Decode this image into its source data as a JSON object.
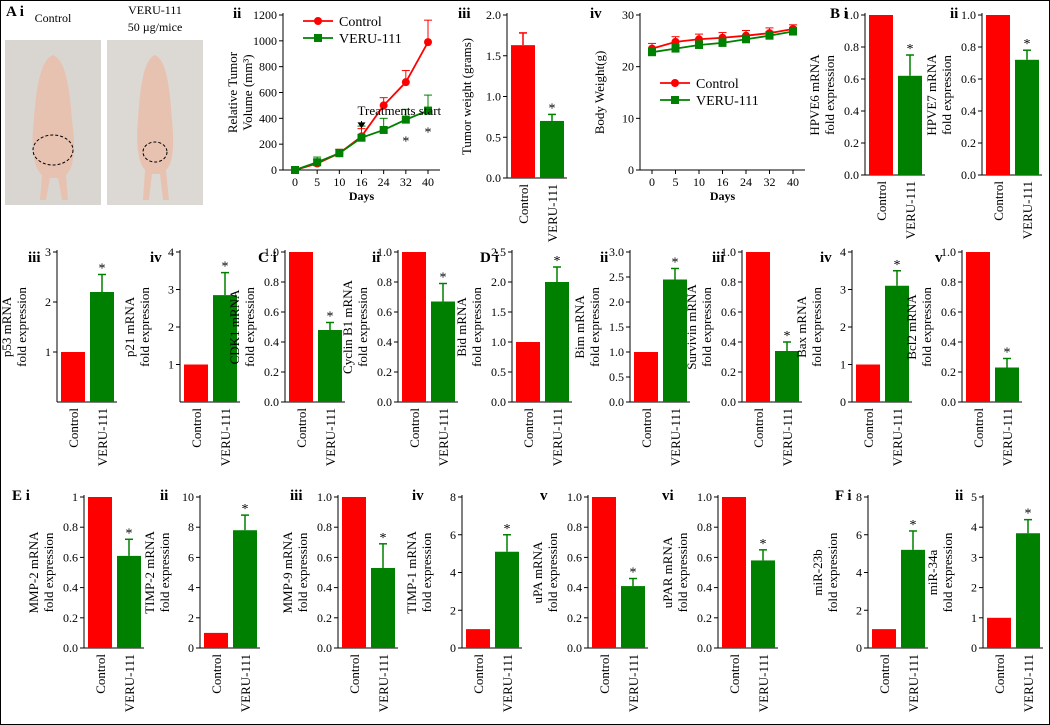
{
  "chart_data": [
    {
      "type": "image",
      "panel": "A i",
      "labels": [
        "Control",
        "VERU-111",
        "50 µg/mice"
      ]
    },
    {
      "type": "line",
      "panel": "ii",
      "ylabel": [
        "Relative Tumor",
        "Volume (mm³)"
      ],
      "xlabel": "Days",
      "categories": [
        "0",
        "5",
        "10",
        "16",
        "24",
        "32",
        "40"
      ],
      "ylim": [
        0,
        1200
      ],
      "yticks": [
        0,
        200,
        400,
        600,
        800,
        1000,
        1200
      ],
      "series": [
        {
          "name": "Control",
          "color": "#ff0000",
          "marker": "circle",
          "values": [
            0,
            50,
            130,
            260,
            500,
            680,
            990
          ],
          "errors": [
            10,
            30,
            30,
            60,
            60,
            90,
            170
          ]
        },
        {
          "name": "VERU-111",
          "color": "#008000",
          "marker": "square",
          "values": [
            0,
            60,
            130,
            250,
            310,
            390,
            460
          ],
          "errors": [
            10,
            40,
            30,
            90,
            90,
            80,
            120
          ]
        }
      ],
      "legend": "upper left",
      "annotations": [
        {
          "text": "Treatments start",
          "index": 3
        },
        {
          "text": "*",
          "index": 5,
          "series": 1
        },
        {
          "text": "*",
          "index": 6,
          "series": 1
        }
      ]
    },
    {
      "type": "bar",
      "panel": "iii",
      "ylabel": [
        "Tumor weight (grams)"
      ],
      "categories": [
        "Control",
        "VERU-111"
      ],
      "colors": [
        "#ff0000",
        "#008000"
      ],
      "values": [
        1.63,
        0.7
      ],
      "errors": [
        0.15,
        0.08
      ],
      "ylim": [
        0,
        2
      ],
      "yticks": [
        {
          "value": 0,
          "label": "0.0"
        },
        0.5,
        {
          "value": 1,
          "label": "1.0"
        },
        1.5,
        {
          "value": 2,
          "label": "2.0"
        }
      ],
      "annotations": [
        {
          "text": "*",
          "index": 1
        }
      ]
    },
    {
      "type": "line",
      "panel": "iv",
      "ylabel": [
        "Body Weight(g)"
      ],
      "xlabel": "Days",
      "categories": [
        "0",
        "5",
        "10",
        "16",
        "24",
        "32",
        "40"
      ],
      "ylim": [
        0,
        30
      ],
      "yticks": [
        0,
        10,
        20,
        30
      ],
      "series": [
        {
          "name": "Control",
          "color": "#ff0000",
          "marker": "circle",
          "values": [
            23.5,
            24.8,
            25.3,
            25.6,
            26,
            26.5,
            27.3
          ],
          "errors": [
            1,
            1,
            1,
            1,
            1,
            1,
            0.8
          ]
        },
        {
          "name": "VERU-111",
          "color": "#008000",
          "marker": "square",
          "values": [
            22.8,
            23.5,
            24.2,
            24.6,
            25.3,
            26,
            26.8
          ],
          "errors": [
            0.8,
            0.8,
            0.8,
            0.8,
            0.8,
            0.8,
            0.8
          ]
        }
      ],
      "legend": "center left",
      "annotations": []
    },
    {
      "type": "bar",
      "panel": "B i",
      "ylabel": [
        "HPVE6 mRNA",
        "fold expression"
      ],
      "categories": [
        "Control",
        "VERU-111"
      ],
      "colors": [
        "#ff0000",
        "#008000"
      ],
      "values": [
        1,
        0.62
      ],
      "errors": [
        0,
        0.13
      ],
      "ylim": [
        0,
        1
      ],
      "yticks": [
        {
          "value": 0,
          "label": "0.0"
        },
        0.2,
        0.4,
        0.6,
        0.8,
        {
          "value": 1,
          "label": "1.0"
        }
      ],
      "annotations": [
        {
          "text": "*",
          "index": 1
        }
      ]
    },
    {
      "type": "bar",
      "panel": "ii",
      "ylabel": [
        "HPVE7 mRNA",
        "fold expression"
      ],
      "categories": [
        "Control",
        "VERU-111"
      ],
      "colors": [
        "#ff0000",
        "#008000"
      ],
      "values": [
        1,
        0.72
      ],
      "errors": [
        0,
        0.06
      ],
      "ylim": [
        0,
        1
      ],
      "yticks": [
        {
          "value": 0,
          "label": "0.0"
        },
        0.2,
        0.4,
        0.6,
        0.8,
        {
          "value": 1,
          "label": "1.0"
        }
      ],
      "annotations": [
        {
          "text": "*",
          "index": 1
        }
      ]
    },
    {
      "type": "bar",
      "panel": "iii",
      "ylabel": [
        "p53 mRNA",
        "fold expression"
      ],
      "categories": [
        "Control",
        "VERU-111"
      ],
      "colors": [
        "#ff0000",
        "#008000"
      ],
      "values": [
        1,
        2.2
      ],
      "errors": [
        0,
        0.35
      ],
      "ylim": [
        0,
        3
      ],
      "yticks": [
        1,
        2,
        3
      ],
      "annotations": [
        {
          "text": "*",
          "index": 1
        }
      ]
    },
    {
      "type": "bar",
      "panel": "iv",
      "ylabel": [
        "p21 mRNA",
        "fold expression"
      ],
      "categories": [
        "Control",
        "VERU-111"
      ],
      "colors": [
        "#ff0000",
        "#008000"
      ],
      "values": [
        1,
        2.85
      ],
      "errors": [
        0,
        0.6
      ],
      "ylim": [
        0,
        4
      ],
      "yticks": [
        1,
        2,
        3,
        4
      ],
      "annotations": [
        {
          "text": "*",
          "index": 1
        }
      ]
    },
    {
      "type": "bar",
      "panel": "C i",
      "ylabel": [
        "CDK1 mRNA",
        "fold expression"
      ],
      "categories": [
        "Control",
        "VERU-111"
      ],
      "colors": [
        "#ff0000",
        "#008000"
      ],
      "values": [
        1,
        0.48
      ],
      "errors": [
        0,
        0.05
      ],
      "ylim": [
        0,
        1
      ],
      "yticks": [
        {
          "value": 0,
          "label": "0.0"
        },
        0.2,
        0.4,
        0.6,
        0.8,
        {
          "value": 1,
          "label": "1.0"
        }
      ],
      "annotations": [
        {
          "text": "*",
          "index": 1
        }
      ]
    },
    {
      "type": "bar",
      "panel": "ii",
      "ylabel": [
        "Cyclin B1 mRNA",
        "fold expression"
      ],
      "categories": [
        "Control",
        "VERU-111"
      ],
      "colors": [
        "#ff0000",
        "#008000"
      ],
      "values": [
        1,
        0.67
      ],
      "errors": [
        0,
        0.12
      ],
      "ylim": [
        0,
        1
      ],
      "yticks": [
        {
          "value": 0,
          "label": "0.0"
        },
        0.2,
        0.4,
        0.6,
        0.8,
        {
          "value": 1,
          "label": "1.0"
        }
      ],
      "annotations": [
        {
          "text": "*",
          "index": 1
        }
      ]
    },
    {
      "type": "bar",
      "panel": "D i",
      "ylabel": [
        "Bid mRNA",
        "fold expression"
      ],
      "categories": [
        "Control",
        "VERU-111"
      ],
      "colors": [
        "#ff0000",
        "#008000"
      ],
      "values": [
        1,
        2.0
      ],
      "errors": [
        0,
        0.25
      ],
      "ylim": [
        0,
        2.5
      ],
      "yticks": [
        {
          "value": 0,
          "label": "0.0"
        },
        0.5,
        {
          "value": 1,
          "label": "1.0"
        },
        1.5,
        {
          "value": 2,
          "label": "2.0"
        },
        2.5
      ],
      "annotations": [
        {
          "text": "*",
          "index": 1
        }
      ]
    },
    {
      "type": "bar",
      "panel": "ii",
      "ylabel": [
        "Bim mRNA",
        "fold expression"
      ],
      "categories": [
        "Control",
        "VERU-111"
      ],
      "colors": [
        "#ff0000",
        "#008000"
      ],
      "values": [
        1,
        2.45
      ],
      "errors": [
        0,
        0.22
      ],
      "ylim": [
        0,
        3
      ],
      "yticks": [
        {
          "value": 0,
          "label": "0.0"
        },
        0.5,
        {
          "value": 1,
          "label": "1.0"
        },
        1.5,
        {
          "value": 2,
          "label": "2.0"
        },
        2.5,
        {
          "value": 3,
          "label": "3.0"
        }
      ],
      "annotations": [
        {
          "text": "*",
          "index": 1
        }
      ]
    },
    {
      "type": "bar",
      "panel": "iii",
      "ylabel": [
        "Survivin mRNA",
        "fold expression"
      ],
      "categories": [
        "Control",
        "VERU-111"
      ],
      "colors": [
        "#ff0000",
        "#008000"
      ],
      "values": [
        1,
        0.34
      ],
      "errors": [
        0,
        0.06
      ],
      "ylim": [
        0,
        1
      ],
      "yticks": [
        {
          "value": 0,
          "label": "0.0"
        },
        0.2,
        0.4,
        0.6,
        0.8,
        {
          "value": 1,
          "label": "1.0"
        }
      ],
      "annotations": [
        {
          "text": "*",
          "index": 1
        }
      ]
    },
    {
      "type": "bar",
      "panel": "iv",
      "ylabel": [
        "Bax mRNA",
        "fold expression"
      ],
      "categories": [
        "Control",
        "VERU-111"
      ],
      "colors": [
        "#ff0000",
        "#008000"
      ],
      "values": [
        1,
        3.1
      ],
      "errors": [
        0,
        0.4
      ],
      "ylim": [
        0,
        4
      ],
      "yticks": [
        0,
        1,
        2,
        3,
        4
      ],
      "annotations": [
        {
          "text": "*",
          "index": 1
        }
      ]
    },
    {
      "type": "bar",
      "panel": "v",
      "ylabel": [
        "Bcl2 mRNA",
        "fold expression"
      ],
      "categories": [
        "Control",
        "VERU-111"
      ],
      "colors": [
        "#ff0000",
        "#008000"
      ],
      "values": [
        1,
        0.23
      ],
      "errors": [
        0,
        0.06
      ],
      "ylim": [
        0,
        1
      ],
      "yticks": [
        {
          "value": 0,
          "label": "0.0"
        },
        0.2,
        0.4,
        0.6,
        0.8,
        {
          "value": 1,
          "label": "1.0"
        }
      ],
      "annotations": [
        {
          "text": "*",
          "index": 1
        }
      ]
    },
    {
      "type": "bar",
      "panel": "E i",
      "ylabel": [
        "MMP-2 mRNA",
        "fold expression"
      ],
      "categories": [
        "Control",
        "VERU-111"
      ],
      "colors": [
        "#ff0000",
        "#008000"
      ],
      "values": [
        1,
        0.61
      ],
      "errors": [
        0,
        0.11
      ],
      "ylim": [
        0,
        1
      ],
      "yticks": [
        {
          "value": 0,
          "label": "0.0"
        },
        0.2,
        0.4,
        0.6,
        0.8,
        1
      ],
      "annotations": [
        {
          "text": "*",
          "index": 1
        }
      ]
    },
    {
      "type": "bar",
      "panel": "ii",
      "ylabel": [
        "TIMP-2 mRNA",
        "fold expression"
      ],
      "categories": [
        "Control",
        "VERU-111"
      ],
      "colors": [
        "#ff0000",
        "#008000"
      ],
      "values": [
        1,
        7.8
      ],
      "errors": [
        0,
        1.0
      ],
      "ylim": [
        0,
        10
      ],
      "yticks": [
        0,
        2,
        4,
        6,
        8,
        10
      ],
      "annotations": [
        {
          "text": "*",
          "index": 1
        }
      ]
    },
    {
      "type": "bar",
      "panel": "iii",
      "ylabel": [
        "MMP-9 mRNA",
        "fold expression"
      ],
      "categories": [
        "Control",
        "VERU-111"
      ],
      "colors": [
        "#ff0000",
        "#008000"
      ],
      "values": [
        1,
        0.53
      ],
      "errors": [
        0,
        0.16
      ],
      "ylim": [
        0,
        1
      ],
      "yticks": [
        {
          "value": 0,
          "label": "0.0"
        },
        0.2,
        0.4,
        0.6,
        0.8,
        {
          "value": 1,
          "label": "1.0"
        }
      ],
      "annotations": [
        {
          "text": "*",
          "index": 1
        }
      ]
    },
    {
      "type": "bar",
      "panel": "iv",
      "ylabel": [
        "TIMP-1 mRNA",
        "fold expression"
      ],
      "categories": [
        "Control",
        "VERU-111"
      ],
      "colors": [
        "#ff0000",
        "#008000"
      ],
      "values": [
        1,
        5.1
      ],
      "errors": [
        0,
        0.9
      ],
      "ylim": [
        0,
        8
      ],
      "yticks": [
        0,
        2,
        4,
        6,
        8
      ],
      "annotations": [
        {
          "text": "*",
          "index": 1
        }
      ]
    },
    {
      "type": "bar",
      "panel": "v",
      "ylabel": [
        "uPA mRNA",
        "fold expression"
      ],
      "categories": [
        "Control",
        "VERU-111"
      ],
      "colors": [
        "#ff0000",
        "#008000"
      ],
      "values": [
        1,
        0.41
      ],
      "errors": [
        0,
        0.05
      ],
      "ylim": [
        0,
        1
      ],
      "yticks": [
        {
          "value": 0,
          "label": "0.0"
        },
        0.2,
        0.4,
        0.6,
        0.8,
        {
          "value": 1,
          "label": "1.0"
        }
      ],
      "annotations": [
        {
          "text": "*",
          "index": 1
        }
      ]
    },
    {
      "type": "bar",
      "panel": "vi",
      "ylabel": [
        "uPAR mRNA",
        "fold expression"
      ],
      "categories": [
        "Control",
        "VERU-111"
      ],
      "colors": [
        "#ff0000",
        "#008000"
      ],
      "values": [
        1,
        0.58
      ],
      "errors": [
        0,
        0.07
      ],
      "ylim": [
        0,
        1
      ],
      "yticks": [
        {
          "value": 0,
          "label": "0.0"
        },
        0.2,
        0.4,
        0.6,
        0.8,
        {
          "value": 1,
          "label": "1.0"
        }
      ],
      "annotations": [
        {
          "text": "*",
          "index": 1
        }
      ]
    },
    {
      "type": "bar",
      "panel": "F i",
      "ylabel": [
        "miR-23b",
        "fold expression"
      ],
      "categories": [
        "Control",
        "VERU-111"
      ],
      "colors": [
        "#ff0000",
        "#008000"
      ],
      "values": [
        1,
        5.2
      ],
      "errors": [
        0,
        1.0
      ],
      "ylim": [
        0,
        8
      ],
      "yticks": [
        0,
        2,
        4,
        6,
        8
      ],
      "annotations": [
        {
          "text": "*",
          "index": 1
        }
      ]
    },
    {
      "type": "bar",
      "panel": "ii",
      "ylabel": [
        "miR-34a",
        "fold expression"
      ],
      "categories": [
        "Control",
        "VERU-111"
      ],
      "colors": [
        "#ff0000",
        "#008000"
      ],
      "values": [
        1,
        3.8
      ],
      "errors": [
        0,
        0.45
      ],
      "ylim": [
        0,
        5
      ],
      "yticks": [
        0,
        1,
        2,
        3,
        4,
        5
      ],
      "annotations": [
        {
          "text": "*",
          "index": 1
        }
      ]
    }
  ]
}
